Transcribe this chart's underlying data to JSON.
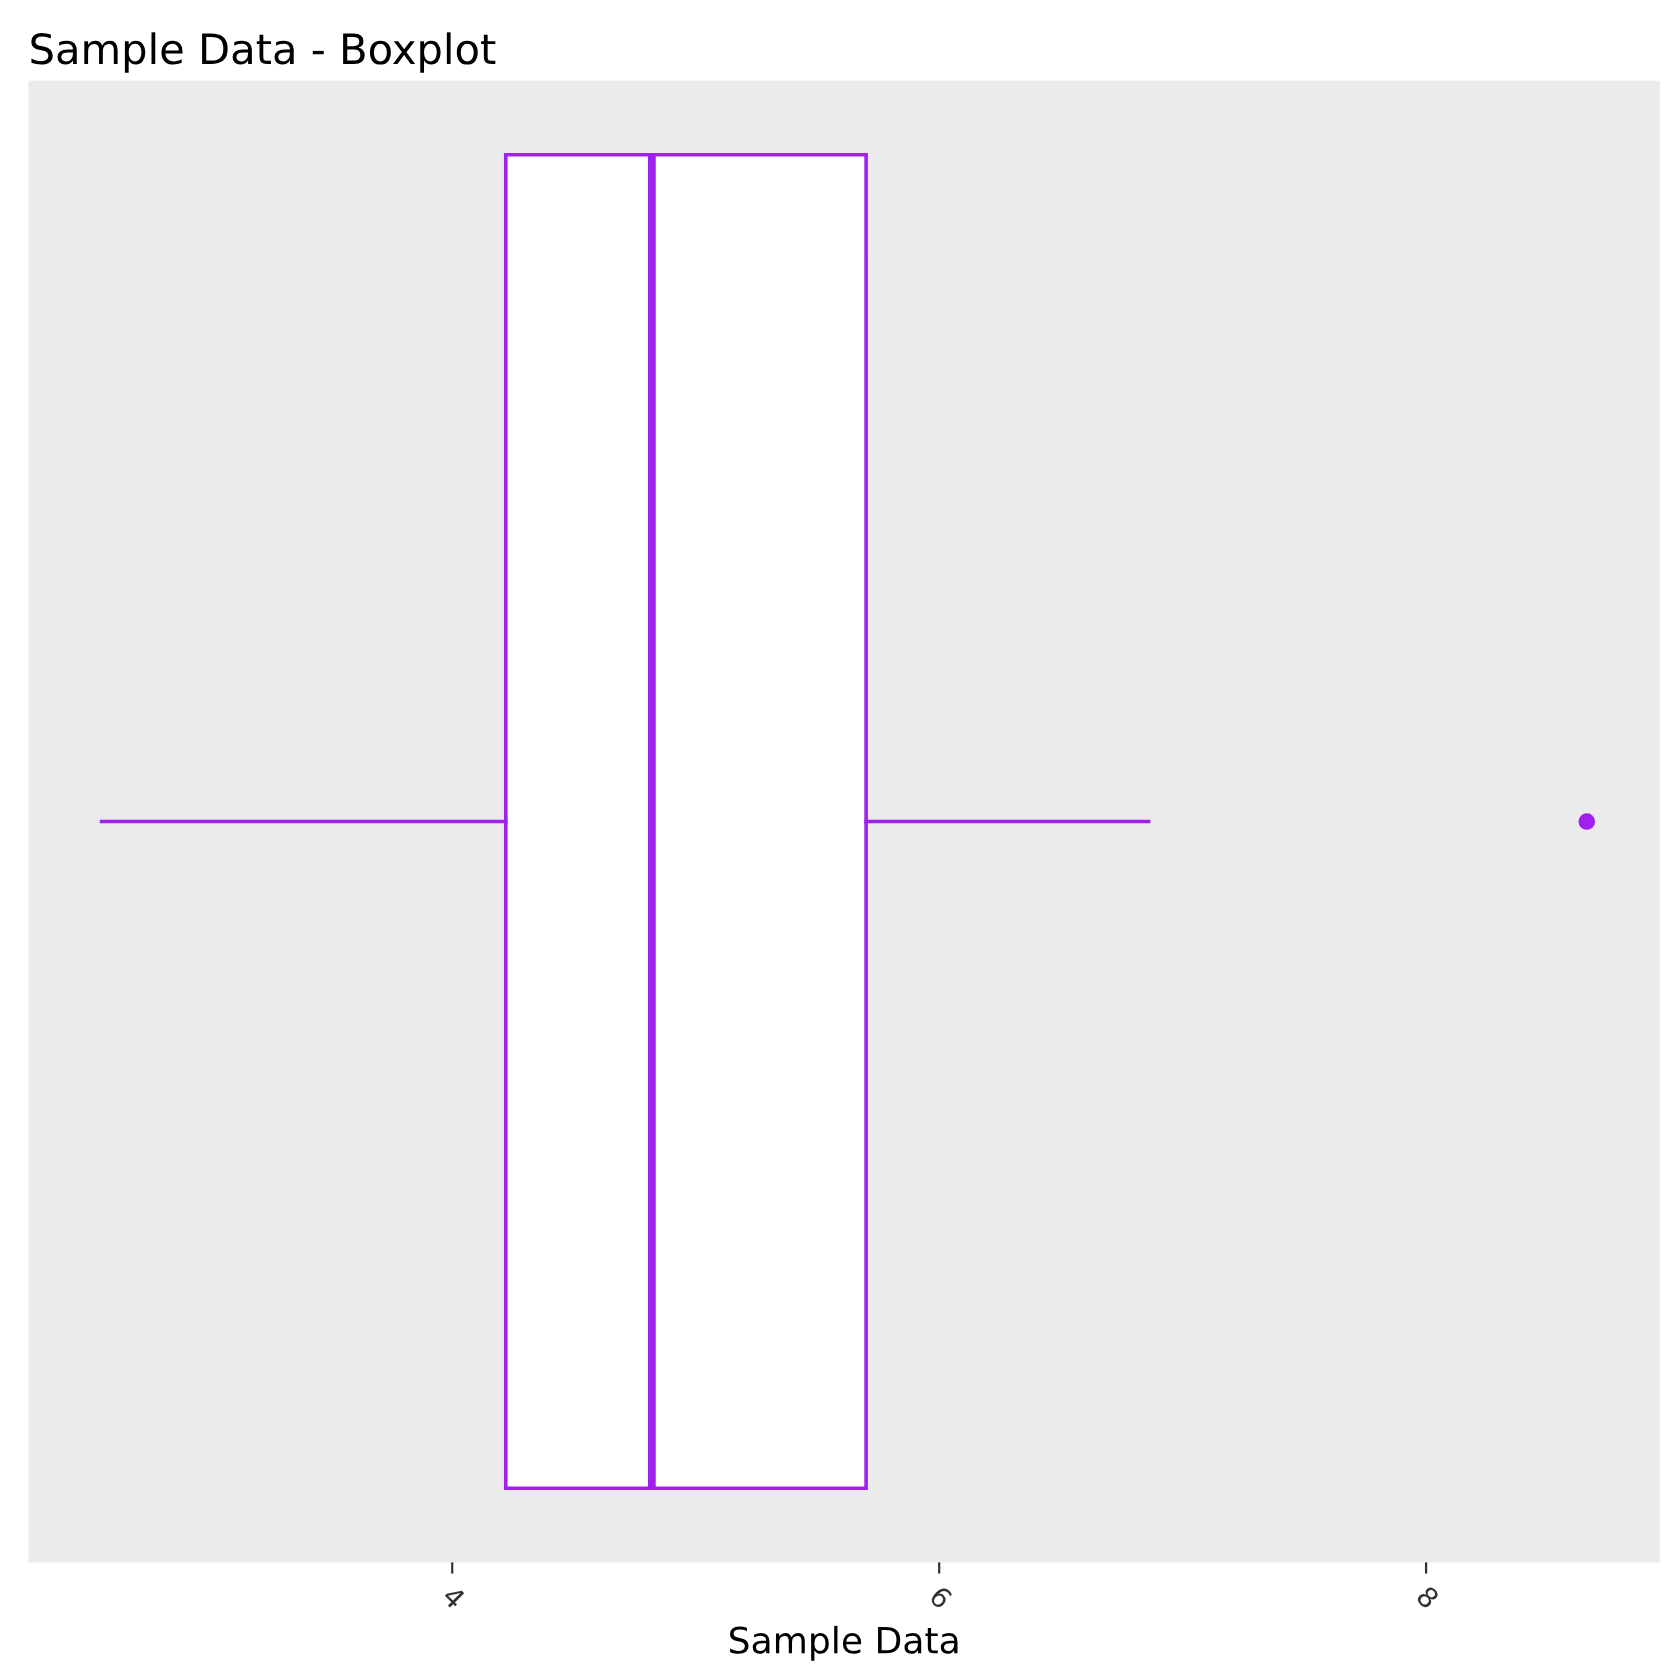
{
  "chart_data": {
    "type": "box",
    "title": "Sample Data - Boxplot",
    "xlabel": "Sample Data",
    "orientation": "horizontal",
    "categories": [
      null
    ],
    "color": "#a020f0",
    "boxes": [
      {
        "low": 2.56,
        "q1": 4.22,
        "median": 4.82,
        "q3": 5.7,
        "high": 6.86,
        "outliers": [
          8.66
        ]
      }
    ],
    "xlim": [
      2.26,
      8.96
    ],
    "xticks": [
      4,
      6,
      8
    ],
    "grid": false,
    "legend": false
  }
}
